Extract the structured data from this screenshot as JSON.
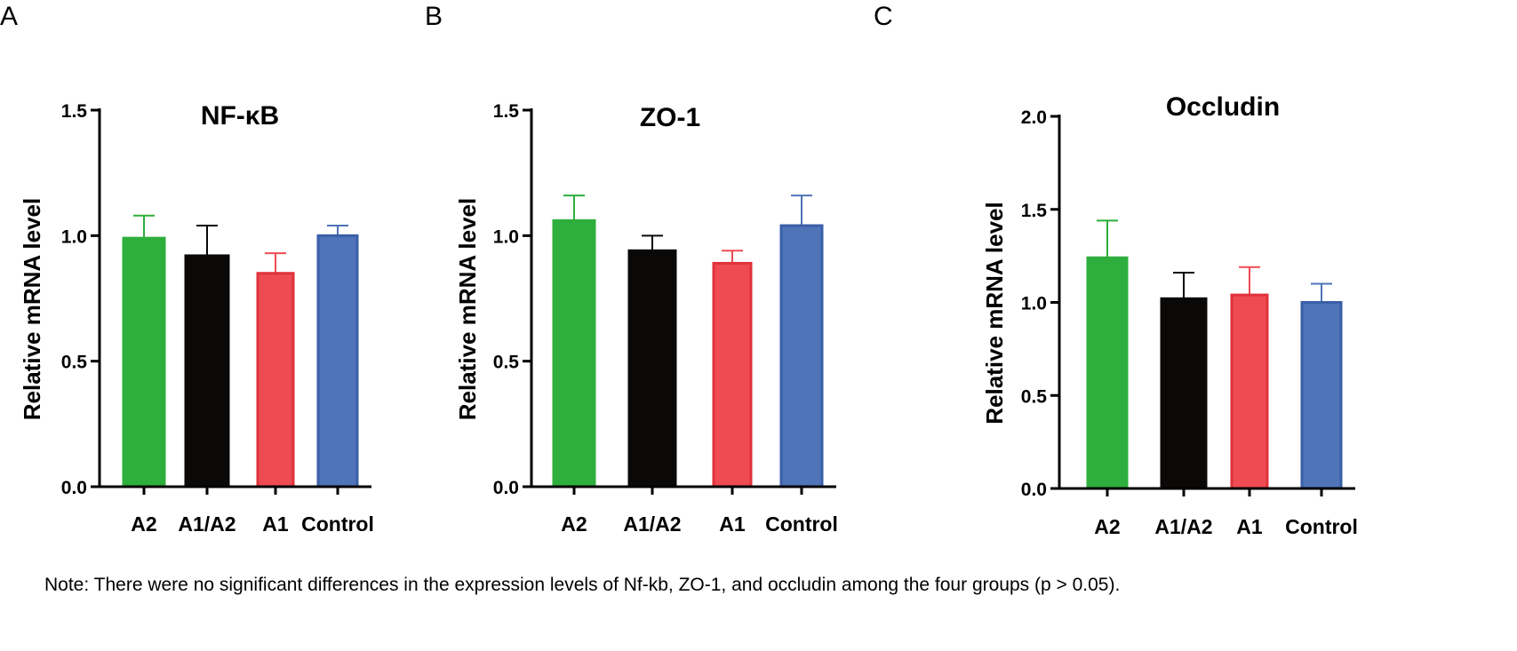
{
  "footnote": "Note: There were no significant differences in the expression levels of Nf-kb, ZO-1, and occludin among the four groups (p > 0.05).",
  "colors": {
    "A2": "#2eae3c",
    "A1/A2": "#0b0808",
    "A1": "#ee4b52",
    "Control": "#4f74b8"
  },
  "chart_data": [
    {
      "panel": "A",
      "type": "bar",
      "title": "NF-κB",
      "ylabel": "Relative mRNA level",
      "categories": [
        "A2",
        "A1/A2",
        "A1",
        "Control"
      ],
      "values": [
        0.99,
        0.92,
        0.85,
        1.0
      ],
      "errors": [
        0.09,
        0.12,
        0.08,
        0.04
      ],
      "ylim": [
        0,
        1.5
      ],
      "yticks": [
        0.0,
        0.5,
        1.0,
        1.5
      ],
      "ytick_labels": [
        "0.0",
        "0.5",
        "1.0",
        "1.5"
      ],
      "grid": false
    },
    {
      "panel": "B",
      "type": "bar",
      "title": "ZO-1",
      "ylabel": "Relative mRNA level",
      "categories": [
        "A2",
        "A1/A2",
        "A1",
        "Control"
      ],
      "values": [
        1.06,
        0.94,
        0.89,
        1.04
      ],
      "errors": [
        0.1,
        0.06,
        0.05,
        0.12
      ],
      "ylim": [
        0,
        1.5
      ],
      "yticks": [
        0.0,
        0.5,
        1.0,
        1.5
      ],
      "ytick_labels": [
        "0.0",
        "0.5",
        "1.0",
        "1.5"
      ],
      "grid": false
    },
    {
      "panel": "C",
      "type": "bar",
      "title": "Occludin",
      "ylabel": "Relative mRNA level",
      "categories": [
        "A2",
        "A1/A2",
        "A1",
        "Control"
      ],
      "values": [
        1.24,
        1.02,
        1.04,
        1.0
      ],
      "errors": [
        0.2,
        0.14,
        0.15,
        0.1
      ],
      "ylim": [
        0,
        2.0
      ],
      "yticks": [
        0.0,
        0.5,
        1.0,
        1.5,
        2.0
      ],
      "ytick_labels": [
        "0.0",
        "0.5",
        "1.0",
        "1.5",
        "2.0"
      ],
      "grid": false
    }
  ]
}
